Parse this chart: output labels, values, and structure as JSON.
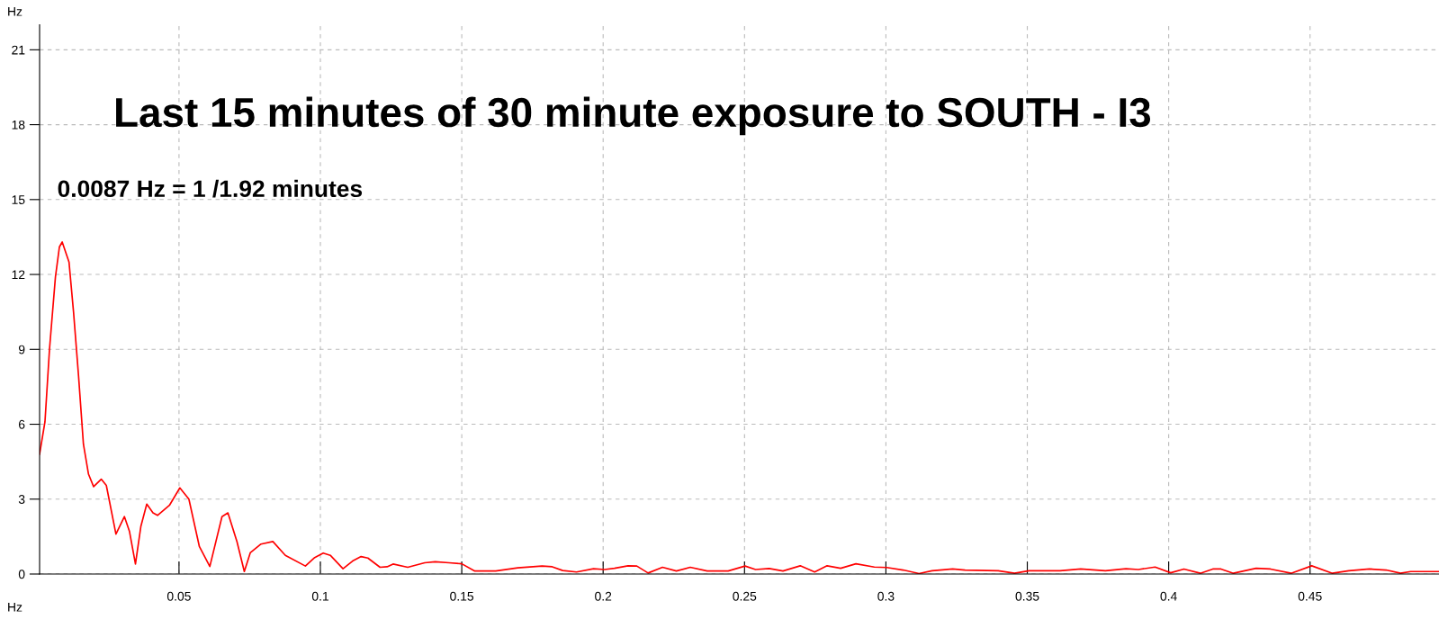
{
  "chart_data": {
    "type": "line",
    "title": "Last 15 minutes of 30 minute exposure to SOUTH - I3",
    "xlabel": "Hz",
    "ylabel": "Hz",
    "annotations": [
      {
        "text": "0.0087 Hz = 1 /1.92 minutes",
        "x": 0.0087,
        "y": 13.3
      }
    ],
    "xlim": [
      0.0007,
      0.4956
    ],
    "xticks": [
      0.05,
      0.1,
      0.15,
      0.2,
      0.25,
      0.3,
      0.35,
      0.4,
      0.45
    ],
    "ylim": [
      0,
      22
    ],
    "yticks": [
      0,
      3,
      6,
      9,
      12,
      15,
      18,
      21
    ],
    "grid": true,
    "legend": false,
    "marker": "none",
    "line_style": "solid",
    "series": [
      {
        "color": "#ff0000",
        "x": [
          0.0007,
          0.0026,
          0.0042,
          0.0063,
          0.0077,
          0.0087,
          0.0111,
          0.0127,
          0.0145,
          0.0162,
          0.018,
          0.0198,
          0.0225,
          0.0243,
          0.0277,
          0.0307,
          0.0325,
          0.0346,
          0.0365,
          0.0386,
          0.0408,
          0.0424,
          0.0466,
          0.0503,
          0.0535,
          0.0572,
          0.0609,
          0.0652,
          0.0673,
          0.0705,
          0.0731,
          0.0752,
          0.079,
          0.0832,
          0.0876,
          0.0947,
          0.098,
          0.101,
          0.1035,
          0.108,
          0.1114,
          0.1144,
          0.1168,
          0.1211,
          0.1236,
          0.1257,
          0.1309,
          0.1369,
          0.1406,
          0.1455,
          0.15,
          0.1546,
          0.162,
          0.1698,
          0.1784,
          0.182,
          0.1857,
          0.1906,
          0.1966,
          0.2005,
          0.204,
          0.2088,
          0.2119,
          0.2159,
          0.221,
          0.2259,
          0.2308,
          0.2368,
          0.2442,
          0.2502,
          0.2539,
          0.2587,
          0.2636,
          0.2697,
          0.2748,
          0.2792,
          0.284,
          0.2894,
          0.2959,
          0.3003,
          0.3061,
          0.3117,
          0.3163,
          0.3236,
          0.328,
          0.3397,
          0.3455,
          0.3506,
          0.3616,
          0.3689,
          0.3776,
          0.3849,
          0.3893,
          0.3952,
          0.4007,
          0.4054,
          0.4112,
          0.4156,
          0.4185,
          0.4229,
          0.4309,
          0.436,
          0.4433,
          0.4506,
          0.4579,
          0.4637,
          0.471,
          0.4769,
          0.482,
          0.4856,
          0.4955
        ],
        "values": [
          4.8,
          6.1,
          9.0,
          11.9,
          13.1,
          13.3,
          12.5,
          10.5,
          7.9,
          5.2,
          4.0,
          3.5,
          3.8,
          3.55,
          1.6,
          2.3,
          1.7,
          0.4,
          1.9,
          2.8,
          2.45,
          2.35,
          2.75,
          3.45,
          3.0,
          1.1,
          0.3,
          2.3,
          2.45,
          1.3,
          0.1,
          0.85,
          1.2,
          1.3,
          0.75,
          0.32,
          0.66,
          0.84,
          0.75,
          0.21,
          0.52,
          0.7,
          0.64,
          0.27,
          0.29,
          0.4,
          0.27,
          0.45,
          0.49,
          0.45,
          0.41,
          0.12,
          0.12,
          0.25,
          0.32,
          0.29,
          0.14,
          0.08,
          0.21,
          0.18,
          0.23,
          0.33,
          0.32,
          0.04,
          0.27,
          0.12,
          0.27,
          0.12,
          0.12,
          0.32,
          0.18,
          0.22,
          0.12,
          0.33,
          0.08,
          0.33,
          0.23,
          0.41,
          0.28,
          0.26,
          0.16,
          0.02,
          0.13,
          0.2,
          0.16,
          0.13,
          0.03,
          0.13,
          0.13,
          0.2,
          0.13,
          0.21,
          0.18,
          0.28,
          0.05,
          0.2,
          0.03,
          0.2,
          0.2,
          0.03,
          0.23,
          0.2,
          0.03,
          0.33,
          0.03,
          0.13,
          0.2,
          0.16,
          0.03,
          0.1,
          0.1
        ]
      }
    ]
  }
}
